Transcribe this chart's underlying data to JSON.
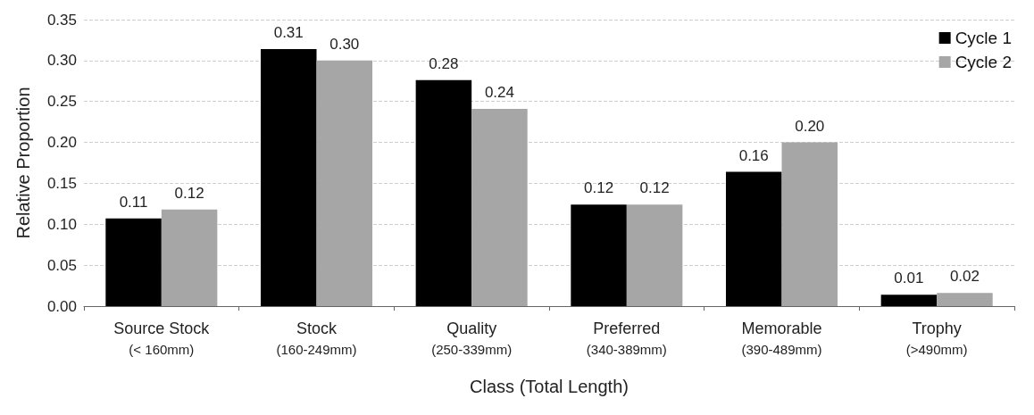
{
  "chart_data": {
    "type": "bar",
    "xlabel": "Class (Total Length)",
    "ylabel": "Relative Proportion",
    "categories": [
      "Source Stock\n(< 160mm)",
      "Stock\n(160-249mm)",
      "Quality\n(250-339mm)",
      "Preferred\n(340-389mm)",
      "Memorable\n(390-489mm)",
      "Trophy\n(>490mm)"
    ],
    "series": [
      {
        "name": "Cycle 1",
        "color": "#000000",
        "values": [
          0.107,
          0.314,
          0.276,
          0.124,
          0.164,
          0.014
        ],
        "value_labels": [
          "0.11",
          "0.31",
          "0.28",
          "0.12",
          "0.16",
          "0.01"
        ]
      },
      {
        "name": "Cycle 2",
        "color": "#a6a6a6",
        "values": [
          0.118,
          0.3,
          0.241,
          0.124,
          0.2,
          0.016
        ],
        "value_labels": [
          "0.12",
          "0.30",
          "0.24",
          "0.12",
          "0.20",
          "0.02"
        ]
      }
    ],
    "ylim": [
      0,
      0.35
    ],
    "yticks": [
      {
        "value": 0,
        "label": "0.00"
      },
      {
        "value": 0.05,
        "label": "0.05"
      },
      {
        "value": 0.1,
        "label": "0.10"
      },
      {
        "value": 0.15,
        "label": "0.15"
      },
      {
        "value": 0.2,
        "label": "0.20"
      },
      {
        "value": 0.25,
        "label": "0.25"
      },
      {
        "value": 0.3,
        "label": "0.30"
      },
      {
        "value": 0.35,
        "label": "0.35"
      }
    ],
    "grid": "y",
    "legend": "top right"
  }
}
